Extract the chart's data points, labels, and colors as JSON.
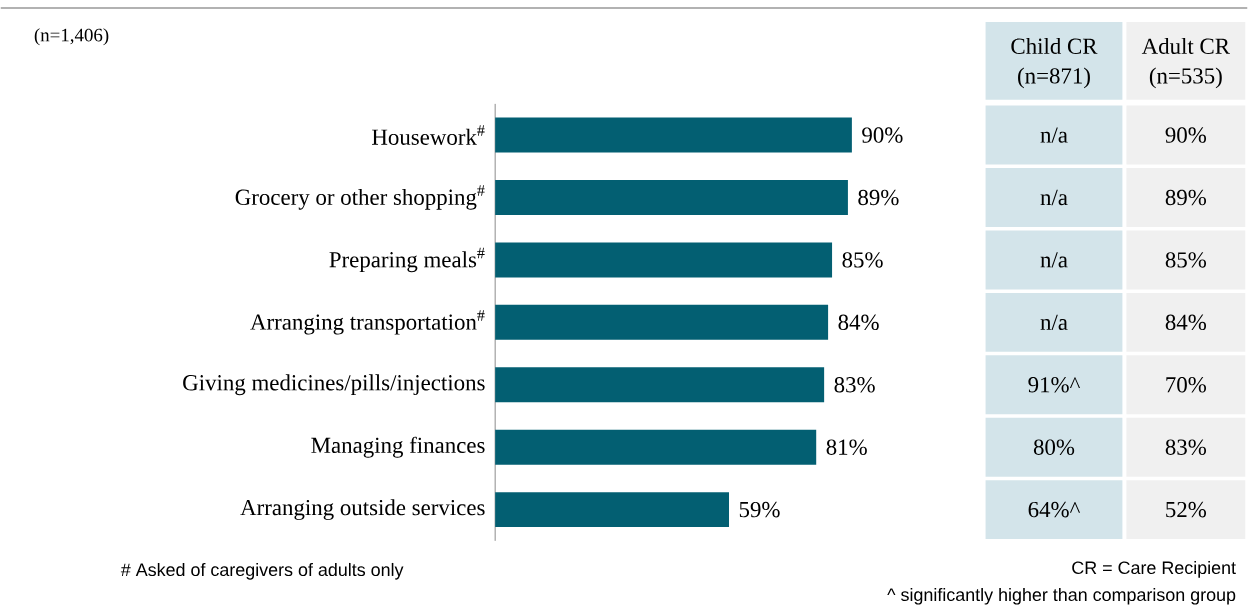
{
  "chart_data": [
    {
      "type": "bar",
      "orientation": "horizontal",
      "color": "#035f72",
      "categories": [
        "Housework$^{#}$",
        "Grocery or other shopping$^{#}$",
        "Preparing meals$^{#}$",
        "Arranging transportation$^{#}$",
        "Giving medicines/pills/injections",
        "Managing finances",
        "Arranging outside services"
      ],
      "values": [
        90,
        89,
        85,
        84,
        83,
        81,
        59
      ],
      "value_labels": [
        "90%",
        "89%",
        "85%",
        "84%",
        "83%",
        "81%",
        "59%"
      ],
      "tick_labels": "y",
      "annotations": [
        "(n=1,406)",
        "# Asked of caregivers of adults only",
        "CR = Care Recipient",
        "^ significantly  higher than comparison group"
      ]
    },
    {
      "type": "other",
      "colors": [
        "#d3e4ea",
        "#f0f0f0"
      ],
      "annotations": [
        "Child CR",
        "(n=871)",
        "Adult CR",
        "(n=535)",
        "n/a",
        "90%",
        "n/a",
        "89%",
        "n/a",
        "85%",
        "n/a",
        "84%",
        "91%^",
        "70%",
        "80%",
        "83%",
        "64%^",
        "52%"
      ]
    }
  ]
}
